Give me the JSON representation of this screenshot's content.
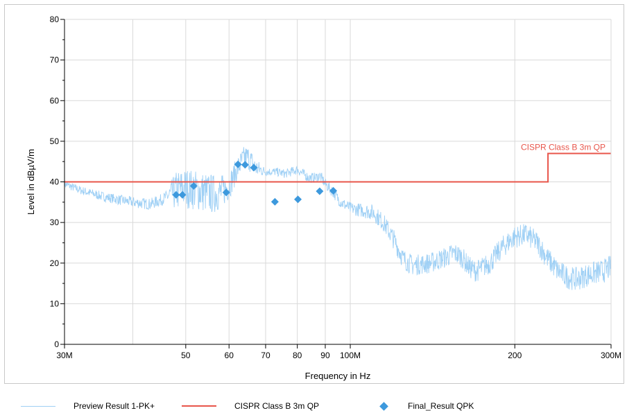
{
  "chart_data": {
    "type": "line",
    "xlabel": "Frequency in Hz",
    "ylabel": "Level in dBµV/m",
    "x_scale": "log",
    "xlim": [
      30000000,
      300000000
    ],
    "ylim": [
      0,
      80
    ],
    "grid": true,
    "x_ticks": [
      {
        "value": 30000000,
        "label": "30M"
      },
      {
        "value": 50000000,
        "label": "50"
      },
      {
        "value": 60000000,
        "label": "60"
      },
      {
        "value": 70000000,
        "label": "70"
      },
      {
        "value": 80000000,
        "label": "80"
      },
      {
        "value": 90000000,
        "label": "90"
      },
      {
        "value": 100000000,
        "label": "100M"
      },
      {
        "value": 200000000,
        "label": "200"
      },
      {
        "value": 300000000,
        "label": "300M"
      }
    ],
    "y_ticks": [
      0,
      10,
      20,
      30,
      40,
      50,
      60,
      70,
      80
    ],
    "limit_label": "CISPR Class B 3m QP",
    "series": [
      {
        "name": "Preview Result 1-PK+",
        "color": "#9fd0f5",
        "kind": "noisy-trace",
        "points": [
          [
            30000000,
            39.5
          ],
          [
            32000000,
            38
          ],
          [
            35000000,
            36.5
          ],
          [
            38000000,
            35.5
          ],
          [
            40000000,
            35
          ],
          [
            43000000,
            34.5
          ],
          [
            45000000,
            35.5
          ],
          [
            47000000,
            37
          ],
          [
            48500000,
            38
          ],
          [
            50000000,
            38.5
          ],
          [
            52000000,
            38
          ],
          [
            54000000,
            37.5
          ],
          [
            56000000,
            37
          ],
          [
            58000000,
            37.5
          ],
          [
            60000000,
            39
          ],
          [
            62000000,
            43
          ],
          [
            64000000,
            46
          ],
          [
            65000000,
            46
          ],
          [
            67000000,
            43.5
          ],
          [
            70000000,
            42.5
          ],
          [
            73000000,
            42.5
          ],
          [
            76000000,
            42
          ],
          [
            78000000,
            42.5
          ],
          [
            80000000,
            43
          ],
          [
            82000000,
            42
          ],
          [
            84000000,
            41
          ],
          [
            86000000,
            41
          ],
          [
            88000000,
            41.5
          ],
          [
            90000000,
            39.5
          ],
          [
            93000000,
            37.5
          ],
          [
            96000000,
            35
          ],
          [
            100000000,
            33.5
          ],
          [
            105000000,
            33
          ],
          [
            110000000,
            32.5
          ],
          [
            115000000,
            30
          ],
          [
            120000000,
            26
          ],
          [
            125000000,
            21
          ],
          [
            130000000,
            19.5
          ],
          [
            140000000,
            20
          ],
          [
            150000000,
            21.5
          ],
          [
            155000000,
            22.5
          ],
          [
            160000000,
            21.5
          ],
          [
            165000000,
            19
          ],
          [
            170000000,
            18
          ],
          [
            180000000,
            20
          ],
          [
            190000000,
            24
          ],
          [
            200000000,
            26.5
          ],
          [
            210000000,
            27
          ],
          [
            220000000,
            25
          ],
          [
            230000000,
            21
          ],
          [
            240000000,
            18
          ],
          [
            250000000,
            16.5
          ],
          [
            260000000,
            16
          ],
          [
            270000000,
            17
          ],
          [
            280000000,
            17.5
          ],
          [
            290000000,
            18
          ],
          [
            300000000,
            19
          ]
        ],
        "noise": [
          [
            30000000,
            1
          ],
          [
            46000000,
            1.5
          ],
          [
            48000000,
            5
          ],
          [
            56000000,
            5
          ],
          [
            60000000,
            3.5
          ],
          [
            62000000,
            3
          ],
          [
            66000000,
            3
          ],
          [
            70000000,
            1
          ],
          [
            100000000,
            1.5
          ],
          [
            120000000,
            2.5
          ],
          [
            300000000,
            3
          ]
        ]
      },
      {
        "name": "CISPR Class B 3m QP",
        "color": "#e8554a",
        "kind": "step",
        "points": [
          [
            30000000,
            40
          ],
          [
            230000000,
            40
          ],
          [
            230000000,
            47
          ],
          [
            300000000,
            47
          ]
        ]
      },
      {
        "name": "Final_Result QPK",
        "color": "#3d99dd",
        "kind": "markers",
        "points": [
          [
            48000000,
            36.8
          ],
          [
            49300000,
            36.8
          ],
          [
            51700000,
            39
          ],
          [
            59300000,
            37.4
          ],
          [
            62300000,
            44.3
          ],
          [
            64200000,
            44.2
          ],
          [
            66600000,
            43.5
          ],
          [
            72800000,
            35.1
          ],
          [
            80200000,
            35.7
          ],
          [
            87900000,
            37.7
          ],
          [
            93100000,
            37.8
          ]
        ]
      }
    ]
  }
}
